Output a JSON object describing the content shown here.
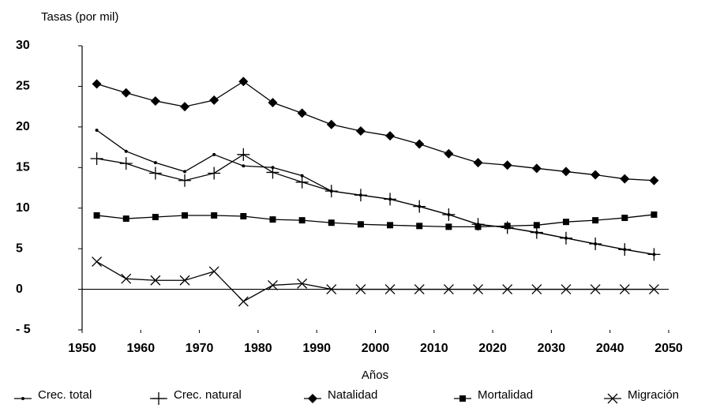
{
  "chart_data": {
    "type": "line",
    "y_label": "Tasas (por mil)",
    "x_label": "Años",
    "x": [
      1952.5,
      1957.5,
      1962.5,
      1967.5,
      1972.5,
      1977.5,
      1982.5,
      1987.5,
      1992.5,
      1997.5,
      2002.5,
      2007.5,
      2012.5,
      2017.5,
      2022.5,
      2027.5,
      2032.5,
      2037.5,
      2042.5,
      2047.5
    ],
    "xlim": [
      1950,
      2050
    ],
    "xticks": [
      1950,
      1960,
      1970,
      1980,
      1990,
      2000,
      2010,
      2020,
      2030,
      2040,
      2050
    ],
    "ylim": [
      -5,
      30
    ],
    "yticks": [
      {
        "value": -5,
        "label": "- 5"
      },
      0,
      5,
      10,
      15,
      20,
      25,
      30
    ],
    "grid": false,
    "legend": "bottom",
    "series": [
      {
        "name": "Crec. total",
        "color": "#000000",
        "marker": "dot",
        "values": [
          19.6,
          17.0,
          15.6,
          14.5,
          16.6,
          15.2,
          15.0,
          14.0,
          12.1,
          11.6,
          11.1,
          10.2,
          9.2,
          8.0,
          7.6,
          7.0,
          6.3,
          5.6,
          4.9,
          4.3
        ]
      },
      {
        "name": "Crec. natural",
        "color": "#000000",
        "marker": "plus",
        "values": [
          16.1,
          15.5,
          14.3,
          13.4,
          14.3,
          16.6,
          14.4,
          13.2,
          12.1,
          11.6,
          11.1,
          10.2,
          9.2,
          8.0,
          7.6,
          7.0,
          6.3,
          5.6,
          4.9,
          4.3
        ]
      },
      {
        "name": "Natalidad",
        "color": "#000000",
        "marker": "diamond",
        "values": [
          25.3,
          24.2,
          23.2,
          22.5,
          23.3,
          25.6,
          23.0,
          21.7,
          20.3,
          19.5,
          18.9,
          17.9,
          16.7,
          15.6,
          15.3,
          14.9,
          14.5,
          14.1,
          13.6,
          13.4
        ]
      },
      {
        "name": "Mortalidad",
        "color": "#000000",
        "marker": "square",
        "values": [
          9.1,
          8.7,
          8.9,
          9.1,
          9.1,
          9.0,
          8.6,
          8.5,
          8.2,
          8.0,
          7.9,
          7.8,
          7.7,
          7.7,
          7.8,
          7.9,
          8.3,
          8.5,
          8.8,
          9.2
        ]
      },
      {
        "name": "Migración",
        "color": "#000000",
        "marker": "cross",
        "values": [
          3.4,
          1.3,
          1.1,
          1.1,
          2.2,
          -1.5,
          0.5,
          0.7,
          0,
          0,
          0,
          0,
          0,
          0,
          0,
          0,
          0,
          0,
          0,
          0
        ]
      }
    ]
  }
}
